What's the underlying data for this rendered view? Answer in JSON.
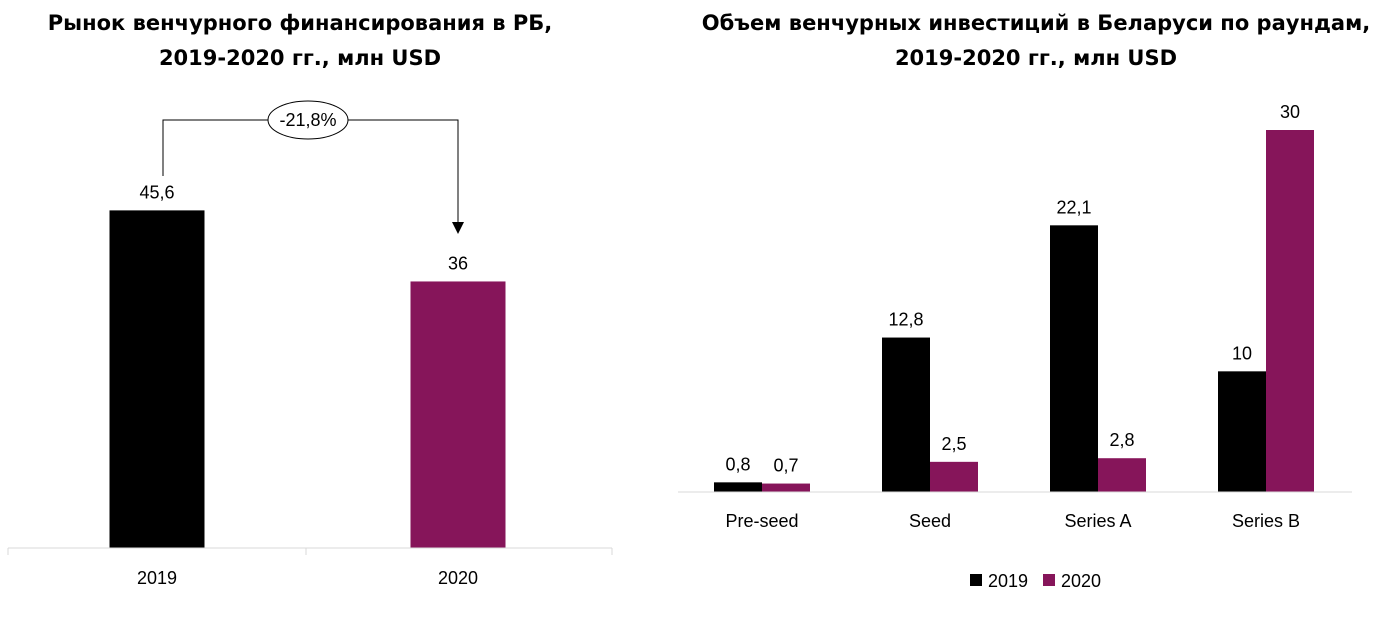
{
  "colors": {
    "y2019": "#000000",
    "y2020": "#86155a"
  },
  "chart_data": [
    {
      "type": "bar",
      "title": "Рынок венчурного финансирования в РБ,",
      "subtitle": "2019-2020 гг., млн USD",
      "categories": [
        "2019",
        "2020"
      ],
      "values": [
        45.6,
        36
      ],
      "data_labels": [
        "45,6",
        "36"
      ],
      "ylim": [
        0,
        52
      ],
      "grid": false,
      "annotation": {
        "text": "-21,8%",
        "from": "2019",
        "to": "2020"
      }
    },
    {
      "type": "bar",
      "title": "Объем венчурных инвестиций в Беларуси по раундам,",
      "subtitle": "2019-2020 гг., млн USD",
      "categories": [
        "Pre-seed",
        "Seed",
        "Series A",
        "Series B"
      ],
      "series": [
        {
          "name": "2019",
          "values": [
            0.8,
            12.8,
            22.1,
            10
          ],
          "data_labels": [
            "0,8",
            "12,8",
            "22,1",
            "10"
          ]
        },
        {
          "name": "2020",
          "values": [
            0.7,
            2.5,
            2.8,
            30
          ],
          "data_labels": [
            "0,7",
            "2,5",
            "2,8",
            "30"
          ]
        }
      ],
      "ylim": [
        0,
        30
      ],
      "grid": false,
      "legend_position": "bottom"
    }
  ]
}
